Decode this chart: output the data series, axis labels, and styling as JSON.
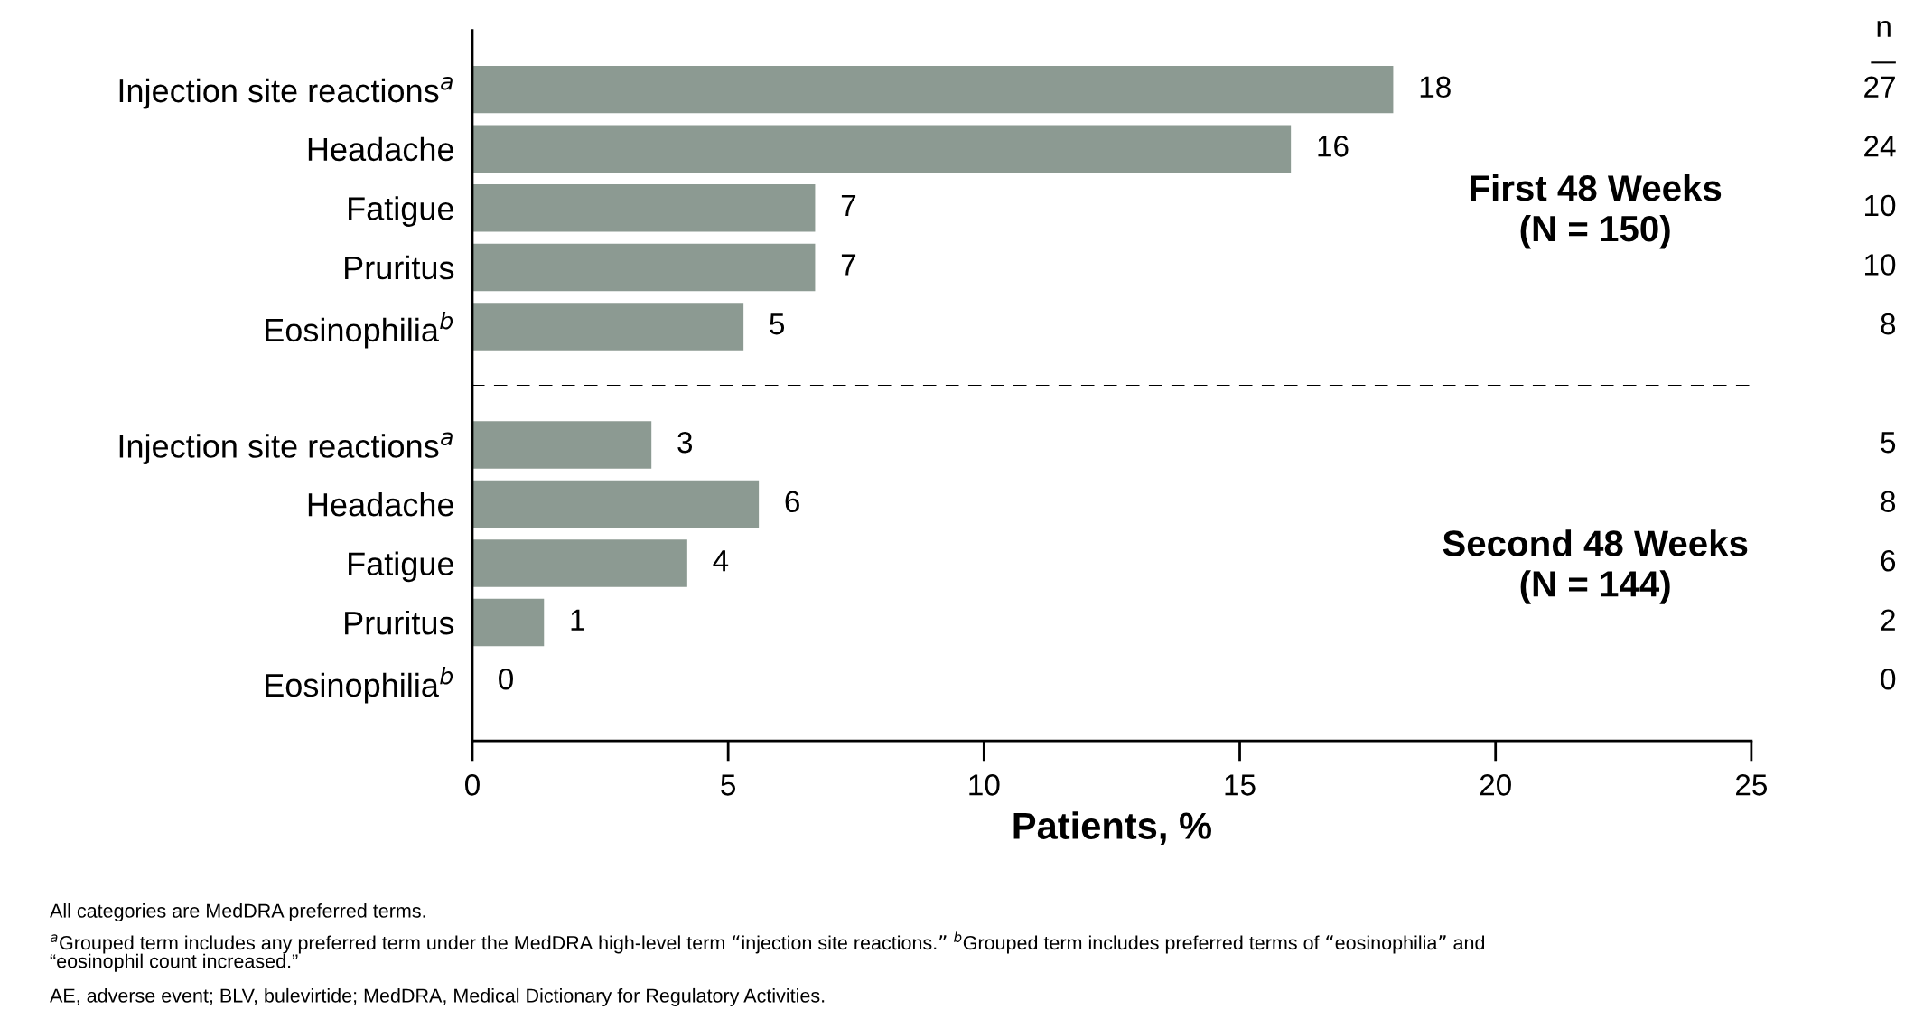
{
  "chart_data": [
    {
      "type": "bar",
      "orientation": "horizontal",
      "title": "First 48 Weeks\n(N = 150)",
      "categories": [
        "Injection site reactions$^{a}$",
        "Headache",
        "Fatigue",
        "Pruritus",
        "Eosinophilia$^{b}$"
      ],
      "values": [
        18,
        16,
        6.7,
        6.7,
        5.3
      ],
      "value_labels": [
        "18",
        "16",
        "7",
        "7",
        "5"
      ],
      "color": "#8c9a92",
      "xlim": [
        0,
        25
      ],
      "tick_labels": "y",
      "grid": false,
      "annotations": [
        "n",
        "27",
        "24",
        "10",
        "10",
        "8"
      ]
    },
    {
      "type": "bar",
      "orientation": "horizontal",
      "title": "Second 48 Weeks\n(N = 144)",
      "categories": [
        "Injection site reactions$^{a}$",
        "Headache",
        "Fatigue",
        "Pruritus",
        "Eosinophilia$^{b}$"
      ],
      "values": [
        3.5,
        5.6,
        4.2,
        1.4,
        0
      ],
      "value_labels": [
        "3",
        "6",
        "4",
        "1",
        "0"
      ],
      "color": "#8c9a92",
      "xlim": [
        0,
        25
      ],
      "xticks": [
        0,
        5,
        10,
        15,
        20,
        25
      ],
      "xlabel": "Patients, %",
      "grid": false,
      "annotations": [
        "5",
        "8",
        "6",
        "2",
        "0",
        "All categories are MedDRA preferred terms.",
        "$^{a}$Grouped term includes any preferred term under the MedDRA high-level term “injection site reactions.” $^{b}$Grouped term includes preferred terms of “eosinophilia” and\n“eosinophil count increased.”",
        "AE, adverse event; BLV, bulevirtide; MedDRA, Medical Dictionary for Regulatory Activities."
      ]
    }
  ]
}
